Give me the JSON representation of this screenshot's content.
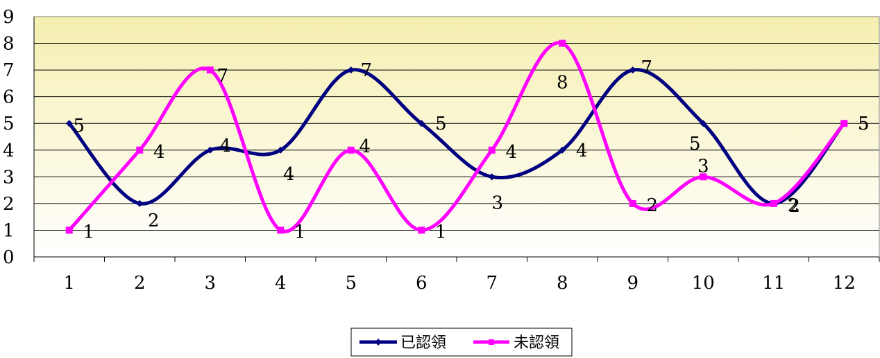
{
  "chart_data": {
    "type": "line",
    "smooth": true,
    "categories": [
      "1",
      "2",
      "3",
      "4",
      "5",
      "6",
      "7",
      "8",
      "9",
      "10",
      "11",
      "12"
    ],
    "x": [
      1,
      2,
      3,
      4,
      5,
      6,
      7,
      8,
      9,
      10,
      11,
      12
    ],
    "ylim": [
      0,
      9
    ],
    "yticks": [
      "0",
      "1",
      "2",
      "3",
      "4",
      "5",
      "6",
      "7",
      "8",
      "9"
    ],
    "grid": true,
    "legend_position": "bottom",
    "series": [
      {
        "name": "已認領",
        "values": [
          5,
          2,
          4,
          4,
          7,
          5,
          3,
          4,
          7,
          5,
          2,
          5
        ],
        "color": "#000080",
        "marker": "diamond"
      },
      {
        "name": "未認領",
        "values": [
          1,
          4,
          7,
          1,
          4,
          1,
          4,
          8,
          2,
          3,
          2,
          5
        ],
        "color": "#ff00ff",
        "marker": "square"
      }
    ],
    "background": "light-yellow gradient"
  }
}
